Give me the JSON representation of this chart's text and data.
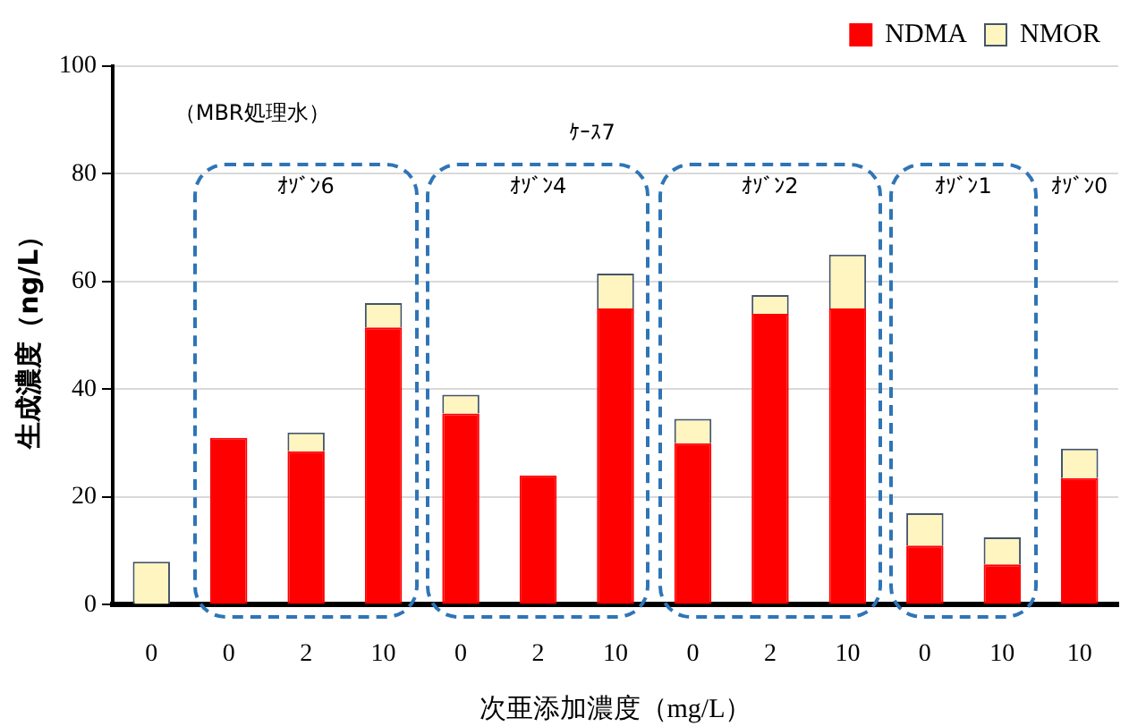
{
  "chart_data": {
    "type": "bar",
    "stacked": true,
    "xlabel": "次亜添加濃度（mg/L）",
    "ylabel": "生成濃度（ng/L）",
    "categories": [
      "0",
      "0",
      "2",
      "10",
      "0",
      "2",
      "10",
      "0",
      "2",
      "10",
      "0",
      "10",
      "10"
    ],
    "series": [
      {
        "name": "NDMA",
        "color": "#ff0000",
        "values": [
          0,
          31,
          28.5,
          51.5,
          35.5,
          24,
          55,
          30,
          54,
          55,
          11,
          7.5,
          23.5
        ]
      },
      {
        "name": "NMOR",
        "color": "#fff5c0",
        "values": [
          8,
          0,
          3.5,
          4.5,
          3.5,
          0,
          6.5,
          4.5,
          3.5,
          10,
          6,
          5,
          5.5
        ]
      }
    ],
    "ylim": [
      0,
      100
    ],
    "yticks": [
      0,
      20,
      40,
      60,
      80,
      100
    ],
    "grid": "y",
    "legend": "top right",
    "annotations": [
      "（MBR処理水）",
      "ｹｰｽ7",
      "ｵｿﾞﾝ6",
      "ｵｿﾞﾝ4",
      "ｵｿﾞﾝ2",
      "ｵｿﾞﾝ1",
      "ｵｿﾞﾝ0"
    ]
  }
}
